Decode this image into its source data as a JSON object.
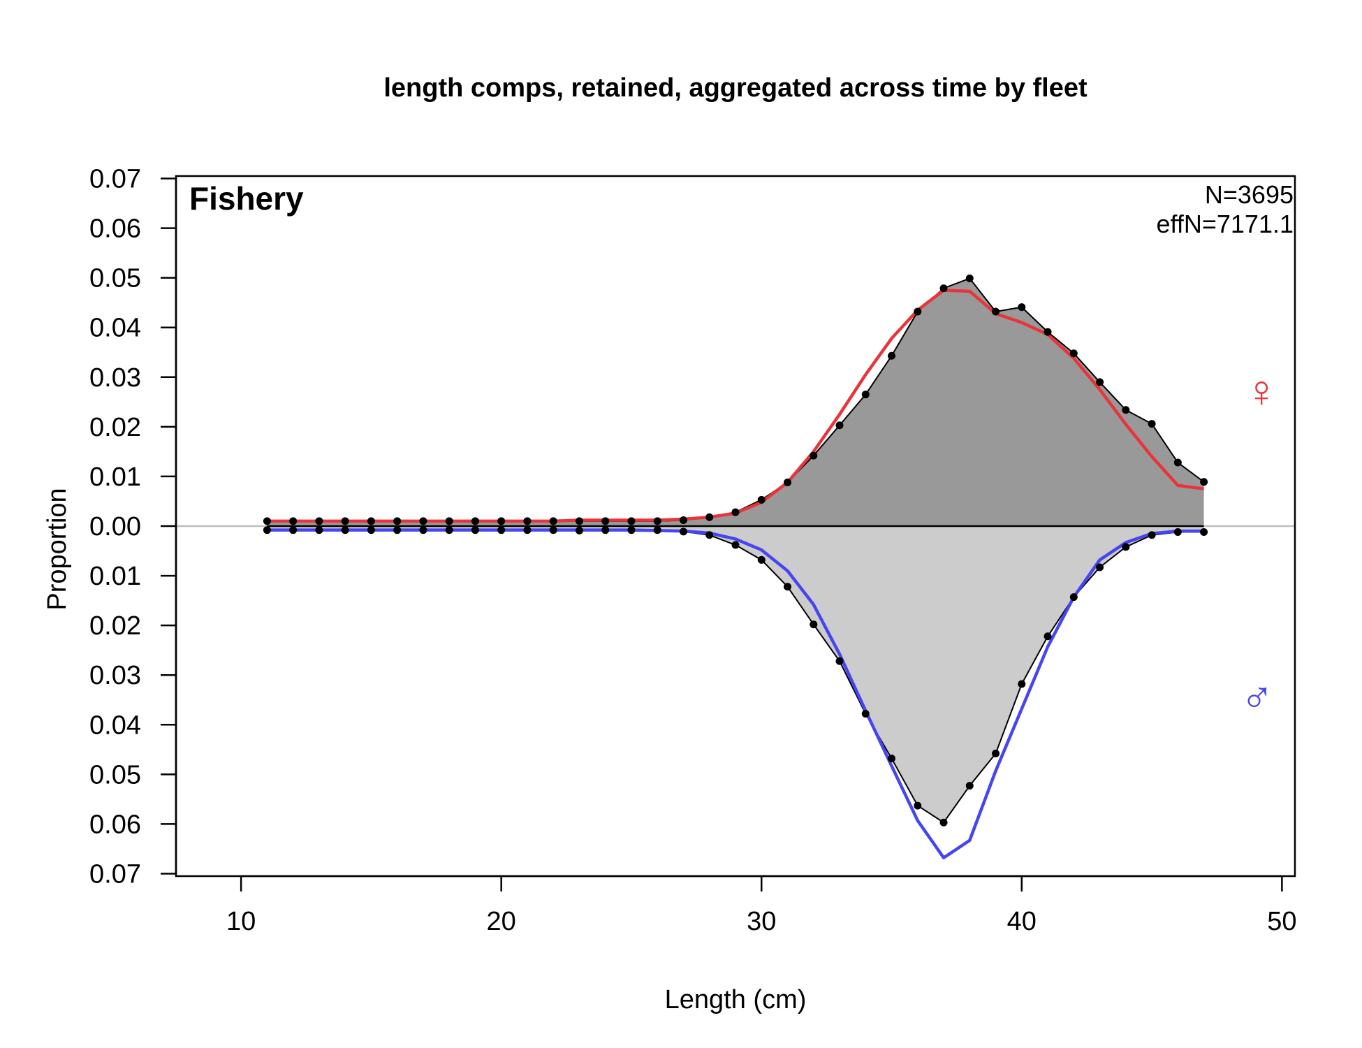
{
  "chart_data": {
    "type": "area",
    "title": "length comps, retained, aggregated across time by fleet",
    "panel_label": "Fishery",
    "xlabel": "Length (cm)",
    "ylabel": "Proportion",
    "xlim": [
      7.5,
      50.5
    ],
    "ylim": [
      -0.0705,
      0.0705
    ],
    "x_ticks": [
      10,
      20,
      30,
      40,
      50
    ],
    "y_ticks": [
      -0.07,
      -0.06,
      -0.05,
      -0.04,
      -0.03,
      -0.02,
      -0.01,
      0.0,
      0.01,
      0.02,
      0.03,
      0.04,
      0.05,
      0.06,
      0.07
    ],
    "y_tick_labels": [
      "0.07",
      "0.06",
      "0.05",
      "0.04",
      "0.03",
      "0.02",
      "0.01",
      "0.00",
      "0.01",
      "0.02",
      "0.03",
      "0.04",
      "0.05",
      "0.06",
      "0.07"
    ],
    "annotations": {
      "n": "N=3695",
      "effn": "effN=7171.1"
    },
    "sex_symbols": {
      "female": "♀",
      "male": "♂"
    },
    "colors": {
      "female_fill": "#999999",
      "male_fill": "#cccccc",
      "female_expected": "#e8353b",
      "male_expected": "#4646f0",
      "observed": "#000000",
      "zero_line": "#bebebe"
    },
    "x": [
      11,
      12,
      13,
      14,
      15,
      16,
      17,
      18,
      19,
      20,
      21,
      22,
      23,
      24,
      25,
      26,
      27,
      28,
      29,
      30,
      31,
      32,
      33,
      34,
      35,
      36,
      37,
      38,
      39,
      40,
      41,
      42,
      43,
      44,
      45,
      46,
      47
    ],
    "series": [
      {
        "name": "Female observed",
        "values": [
          0.001,
          0.001,
          0.001,
          0.001,
          0.001,
          0.001,
          0.001,
          0.001,
          0.001,
          0.001,
          0.001,
          0.001,
          0.001,
          0.001,
          0.001,
          0.001,
          0.0012,
          0.0018,
          0.0028,
          0.0053,
          0.0088,
          0.0142,
          0.0203,
          0.0265,
          0.0343,
          0.0432,
          0.0479,
          0.0499,
          0.0432,
          0.0441,
          0.0391,
          0.0348,
          0.029,
          0.0234,
          0.0206,
          0.0128,
          0.0089
        ]
      },
      {
        "name": "Female expected",
        "values": [
          0.001,
          0.001,
          0.001,
          0.001,
          0.001,
          0.001,
          0.001,
          0.001,
          0.001,
          0.001,
          0.001,
          0.001,
          0.0012,
          0.0012,
          0.0012,
          0.0012,
          0.0014,
          0.0018,
          0.0026,
          0.0048,
          0.0088,
          0.015,
          0.0225,
          0.0305,
          0.0378,
          0.0435,
          0.0475,
          0.0473,
          0.0428,
          0.041,
          0.0386,
          0.0338,
          0.0275,
          0.0205,
          0.014,
          0.0082,
          0.0075
        ]
      },
      {
        "name": "Male observed",
        "values": [
          -0.0008,
          -0.0008,
          -0.0008,
          -0.0008,
          -0.0008,
          -0.0008,
          -0.0008,
          -0.0008,
          -0.0008,
          -0.0008,
          -0.0008,
          -0.0008,
          -0.0009,
          -0.0008,
          -0.0008,
          -0.0008,
          -0.0011,
          -0.0018,
          -0.0038,
          -0.0068,
          -0.0122,
          -0.0198,
          -0.0272,
          -0.0378,
          -0.0468,
          -0.0563,
          -0.0597,
          -0.0523,
          -0.0458,
          -0.0318,
          -0.0222,
          -0.0143,
          -0.0083,
          -0.0042,
          -0.0018,
          -0.0012,
          -0.0012
        ]
      },
      {
        "name": "Male expected",
        "values": [
          -0.0008,
          -0.0008,
          -0.0008,
          -0.0008,
          -0.0008,
          -0.0008,
          -0.0008,
          -0.0008,
          -0.0008,
          -0.0008,
          -0.0008,
          -0.0008,
          -0.0008,
          -0.0008,
          -0.0008,
          -0.0009,
          -0.001,
          -0.0014,
          -0.0026,
          -0.0048,
          -0.009,
          -0.0158,
          -0.0258,
          -0.0372,
          -0.0483,
          -0.0593,
          -0.0668,
          -0.0633,
          -0.0493,
          -0.0368,
          -0.0243,
          -0.0143,
          -0.0068,
          -0.0033,
          -0.0015,
          -0.001,
          -0.001
        ]
      }
    ]
  }
}
